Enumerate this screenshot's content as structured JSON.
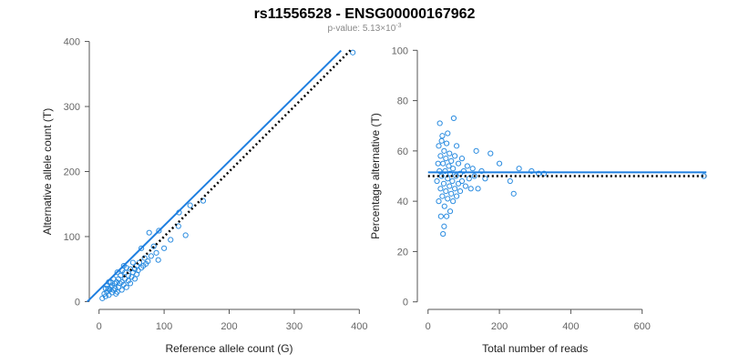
{
  "title": "rs11556528 - ENSG00000167962",
  "subtitle": "p-value: 5.13×10",
  "subtitle_exponent": "-3",
  "chart_data": [
    {
      "type": "scatter",
      "x_label": "Reference allele count (G)",
      "y_label": "Alternative allele count (T)",
      "xlim": [
        -15,
        415
      ],
      "ylim": [
        -12,
        412
      ],
      "xticks": [
        0,
        100,
        200,
        300,
        400
      ],
      "yticks": [
        0,
        100,
        200,
        300,
        400
      ],
      "series": [
        {
          "color": "#2b8ce0",
          "x": [
            5,
            8,
            10,
            12,
            12,
            14,
            15,
            16,
            18,
            18,
            20,
            20,
            22,
            22,
            24,
            25,
            26,
            27,
            28,
            30,
            30,
            32,
            33,
            35,
            35,
            36,
            38,
            40,
            40,
            42,
            42,
            45,
            45,
            48,
            48,
            50,
            52,
            52,
            55,
            55,
            58,
            58,
            60,
            62,
            65,
            65,
            68,
            70,
            72,
            75,
            77,
            80,
            84,
            88,
            91,
            92,
            100,
            110,
            122,
            123,
            133,
            140,
            160,
            390,
            10,
            15,
            28,
            38
          ],
          "values": [
            5,
            12,
            8,
            15,
            25,
            20,
            10,
            18,
            22,
            30,
            14,
            25,
            18,
            35,
            28,
            20,
            12,
            30,
            45,
            22,
            35,
            28,
            40,
            18,
            30,
            48,
            26,
            35,
            45,
            22,
            52,
            32,
            40,
            28,
            50,
            38,
            45,
            60,
            35,
            50,
            42,
            55,
            48,
            60,
            82,
            52,
            55,
            67,
            58,
            62,
            106,
            70,
            85,
            75,
            64,
            109,
            82,
            95,
            116,
            137,
            102,
            148,
            155,
            383,
            20,
            30,
            15,
            55
          ]
        }
      ],
      "lines": [
        {
          "color": "#1f7fe0",
          "dashed": false,
          "x": [
            -18,
            372
          ],
          "values": [
            0,
            386
          ]
        },
        {
          "color": "#000000",
          "dashed": true,
          "x": [
            38,
            388
          ],
          "values": [
            38,
            388
          ]
        }
      ]
    },
    {
      "type": "scatter",
      "x_label": "Total number of reads",
      "y_label": "Percentage alternative (T)",
      "xlim": [
        -30,
        800
      ],
      "ylim": [
        -3,
        103
      ],
      "xticks": [
        0,
        200,
        400,
        600
      ],
      "yticks": [
        0,
        20,
        40,
        60,
        80,
        100
      ],
      "series": [
        {
          "color": "#2b8ce0",
          "x": [
            25,
            28,
            30,
            30,
            32,
            33,
            35,
            35,
            36,
            38,
            40,
            40,
            42,
            42,
            44,
            45,
            46,
            48,
            50,
            50,
            52,
            52,
            55,
            55,
            58,
            60,
            60,
            62,
            65,
            65,
            68,
            70,
            70,
            72,
            75,
            75,
            78,
            80,
            80,
            85,
            85,
            90,
            90,
            95,
            95,
            100,
            105,
            110,
            115,
            120,
            125,
            130,
            135,
            140,
            150,
            160,
            175,
            200,
            230,
            240,
            255,
            290,
            310,
            325,
            773,
            38,
            55,
            45,
            62
          ],
          "values": [
            48,
            55,
            40,
            62,
            52,
            71,
            45,
            58,
            34,
            50,
            42,
            66,
            55,
            27,
            47,
            60,
            38,
            52,
            44,
            57,
            34,
            63,
            49,
            41,
            54,
            46,
            59,
            51,
            43,
            56,
            48,
            53,
            40,
            73,
            45,
            58,
            50,
            62,
            42,
            47,
            55,
            51,
            44,
            48,
            57,
            52,
            46,
            54,
            49,
            45,
            53,
            50,
            60,
            45,
            52,
            49,
            59,
            55,
            48,
            43,
            53,
            52,
            51,
            51,
            50,
            64,
            67,
            30,
            36
          ]
        }
      ],
      "lines": [
        {
          "color": "#1f7fe0",
          "dashed": false,
          "x": [
            0,
            780
          ],
          "values": [
            51.5,
            51.5
          ]
        },
        {
          "color": "#000000",
          "dashed": true,
          "x": [
            0,
            780
          ],
          "values": [
            50,
            50
          ]
        }
      ]
    }
  ]
}
